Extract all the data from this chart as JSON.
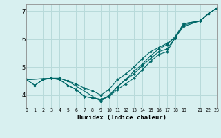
{
  "xlabel": "Humidex (Indice chaleur)",
  "bg_color": "#d8f0f0",
  "line_color": "#006868",
  "grid_color": "#b8dada",
  "xlim": [
    0,
    23
  ],
  "ylim": [
    3.55,
    7.25
  ],
  "yticks": [
    4,
    5,
    6,
    7
  ],
  "xtick_values": [
    0,
    1,
    2,
    3,
    4,
    5,
    6,
    7,
    8,
    9,
    10,
    11,
    12,
    13,
    14,
    15,
    16,
    17,
    18,
    19,
    21,
    22,
    23
  ],
  "xtick_labels": [
    "0",
    "1",
    "2",
    "3",
    "4",
    "5",
    "6",
    "7",
    "8",
    "9",
    "10",
    "11",
    "12",
    "13",
    "14",
    "15",
    "16",
    "17",
    "18",
    "19",
    "21",
    "22",
    "23"
  ],
  "lines": [
    {
      "x": [
        0,
        1,
        2,
        3,
        4,
        5,
        6,
        7,
        8,
        9,
        10,
        11,
        12,
        13,
        14,
        15,
        16,
        17,
        18,
        19,
        21,
        22,
        23
      ],
      "y": [
        4.55,
        4.35,
        4.55,
        4.6,
        4.55,
        4.35,
        4.2,
        3.95,
        3.9,
        3.85,
        3.95,
        4.2,
        4.4,
        4.6,
        4.9,
        5.2,
        5.45,
        5.55,
        6.05,
        6.45,
        6.65,
        6.9,
        7.1
      ]
    },
    {
      "x": [
        0,
        1,
        2,
        3,
        4,
        5,
        6,
        7,
        8,
        9,
        10,
        11,
        12,
        13,
        14,
        15,
        16,
        17,
        18,
        19,
        21,
        22,
        23
      ],
      "y": [
        4.55,
        4.35,
        4.55,
        4.6,
        4.55,
        4.35,
        4.2,
        3.95,
        3.9,
        3.85,
        3.95,
        4.3,
        4.55,
        4.75,
        5.05,
        5.3,
        5.55,
        5.65,
        6.05,
        6.5,
        6.65,
        6.9,
        7.1
      ]
    },
    {
      "x": [
        0,
        3,
        4,
        5,
        6,
        7,
        8,
        9,
        10,
        11,
        12,
        13,
        14,
        15,
        16,
        17,
        18,
        19,
        21,
        22,
        23
      ],
      "y": [
        4.55,
        4.6,
        4.6,
        4.5,
        4.4,
        4.25,
        4.15,
        4.0,
        4.2,
        4.55,
        4.75,
        5.0,
        5.3,
        5.55,
        5.7,
        5.85,
        6.05,
        6.55,
        6.65,
        6.9,
        7.1
      ]
    },
    {
      "x": [
        0,
        3,
        4,
        5,
        9,
        10,
        11,
        12,
        13,
        14,
        15,
        16,
        17,
        18,
        19,
        21,
        22,
        23
      ],
      "y": [
        4.55,
        4.6,
        4.6,
        4.5,
        3.78,
        4.0,
        4.3,
        4.55,
        4.85,
        5.1,
        5.4,
        5.65,
        5.8,
        6.1,
        6.55,
        6.65,
        6.9,
        7.1
      ]
    }
  ]
}
